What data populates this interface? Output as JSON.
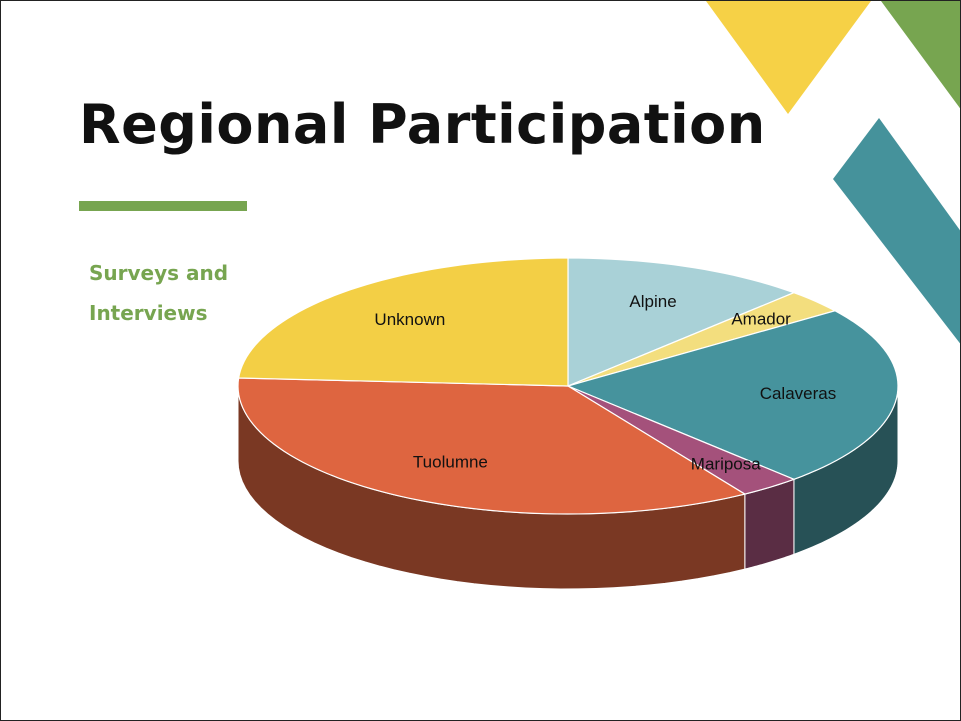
{
  "chart_data": {
    "type": "pie",
    "title": "Regional Participation",
    "subtitle": "Surveys and Interviews",
    "categories": [
      "Alpine",
      "Amador",
      "Calaveras",
      "Mariposa",
      "Tuolumne",
      "Unknown"
    ],
    "values": [
      12,
      3,
      23,
      3,
      35,
      24
    ],
    "colors": [
      "#a9d1d7",
      "#f3de7e",
      "#46939d",
      "#a4517b",
      "#de6540",
      "#f3cf45"
    ]
  }
}
